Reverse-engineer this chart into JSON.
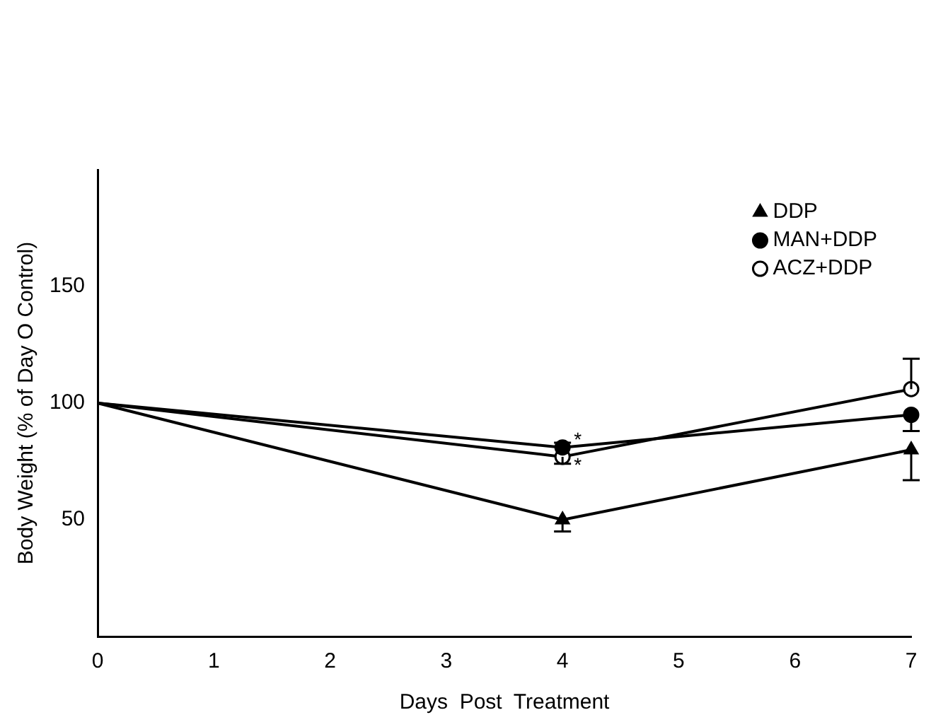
{
  "chart_data": {
    "type": "line",
    "xlabel": "Days  Post  Treatment",
    "ylabel": "Body Weight (% of Day O Control)",
    "x": [
      0,
      4,
      7
    ],
    "xlim": [
      0,
      7
    ],
    "xticks": [
      0,
      1,
      2,
      3,
      4,
      5,
      6,
      7
    ],
    "ylim": [
      0,
      200
    ],
    "yticks": [
      50,
      100,
      150
    ],
    "series": [
      {
        "name": "DDP",
        "color": "#000000",
        "marker": "triangle",
        "values": [
          100,
          50,
          80
        ],
        "errors": [
          null,
          [
            45,
            50
          ],
          [
            67,
            80
          ]
        ]
      },
      {
        "name": "MAN+DDP",
        "color": "#000000",
        "marker": "circle",
        "values": [
          100,
          81,
          95
        ],
        "errors": [
          null,
          [
            81,
            83
          ],
          [
            88,
            95
          ]
        ]
      },
      {
        "name": "ACZ+DDP",
        "color": "#000000",
        "marker": "circle",
        "values": [
          100,
          77,
          106
        ],
        "errors": [
          null,
          [
            74,
            77
          ],
          [
            106,
            119
          ]
        ]
      }
    ],
    "annotations": [
      {
        "text": "*",
        "x": 4,
        "y": 84
      },
      {
        "text": "*",
        "x": 4,
        "y": 73
      }
    ],
    "legend": "top right",
    "grid": false
  }
}
